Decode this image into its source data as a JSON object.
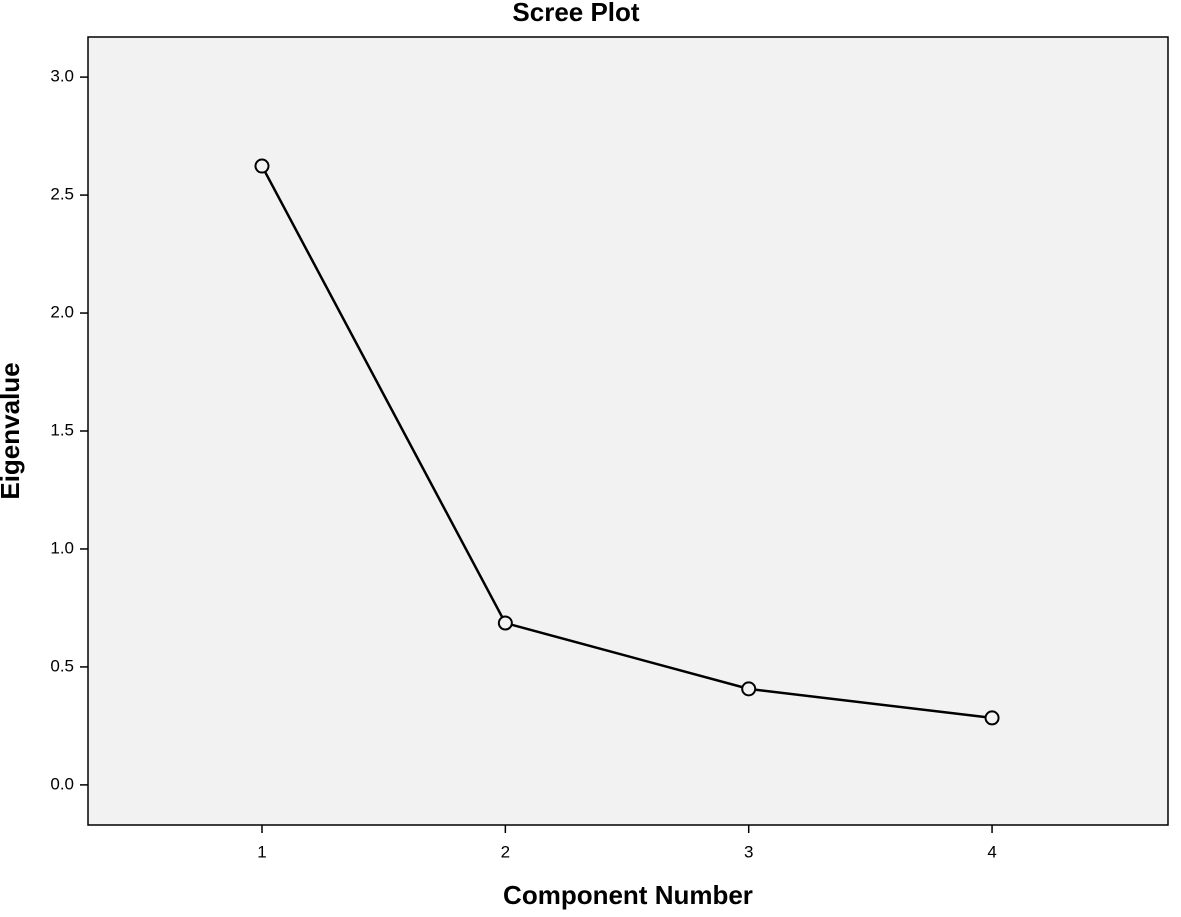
{
  "chart_data": {
    "type": "line",
    "title": "Scree Plot",
    "x_label": "Component Number",
    "y_label": "Eigenvalue",
    "x": [
      1,
      2,
      3,
      4
    ],
    "values": [
      2.623,
      0.686,
      0.407,
      0.284
    ],
    "color": "#000000",
    "marker": "circle",
    "xlim": [
      0.285,
      4.723
    ],
    "ylim": [
      -0.17,
      3.17
    ],
    "xticks": [
      1,
      2,
      3,
      4
    ],
    "yticks": [
      {
        "value": 0,
        "label": "0.0"
      },
      0.5,
      {
        "value": 1,
        "label": "1.0"
      },
      1.5,
      {
        "value": 2,
        "label": "2.0"
      },
      2.5,
      {
        "value": 3,
        "label": "3.0"
      }
    ],
    "background": "#f2f2f2"
  }
}
